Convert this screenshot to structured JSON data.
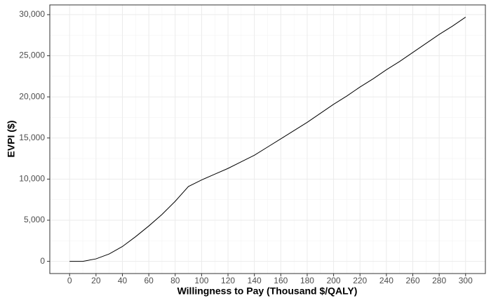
{
  "chart_data": {
    "type": "line",
    "x_label": "Willingness to Pay (Thousand $/QALY)",
    "y_label": "EVPI ($)",
    "x": [
      0,
      10,
      20,
      30,
      40,
      50,
      60,
      70,
      80,
      90,
      100,
      110,
      120,
      130,
      140,
      150,
      160,
      170,
      180,
      190,
      200,
      210,
      220,
      230,
      240,
      250,
      260,
      270,
      280,
      290,
      300
    ],
    "series": [
      {
        "color": "#000000",
        "values": [
          0,
          0,
          300,
          900,
          1800,
          3000,
          4300,
          5700,
          7300,
          9100,
          9900,
          10600,
          11300,
          12100,
          12900,
          13900,
          14900,
          15900,
          16900,
          18000,
          19100,
          20100,
          21200,
          22200,
          23300,
          24300,
          25400,
          26500,
          27600,
          28600,
          29700
        ]
      }
    ],
    "xlim": [
      -15,
      315
    ],
    "xticks": [
      0,
      20,
      40,
      60,
      80,
      100,
      120,
      140,
      160,
      180,
      200,
      220,
      240,
      260,
      280,
      300
    ],
    "ylim": [
      -1485,
      31185
    ],
    "yticks": [
      0,
      {
        "value": 5000,
        "label": "5,000"
      },
      {
        "value": 10000,
        "label": "10,000"
      },
      {
        "value": 15000,
        "label": "15,000"
      },
      {
        "value": 20000,
        "label": "20,000"
      },
      {
        "value": 25000,
        "label": "25,000"
      },
      {
        "value": 30000,
        "label": "30,000"
      }
    ],
    "grid": true
  }
}
